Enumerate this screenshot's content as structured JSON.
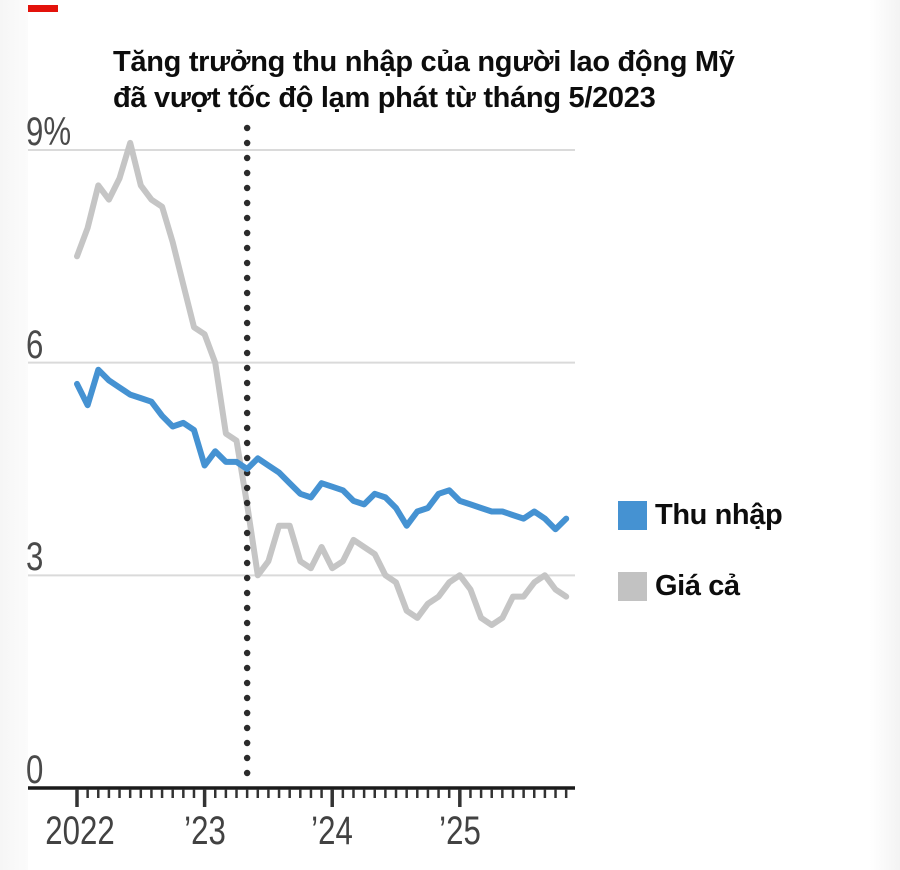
{
  "page": {
    "background": "#ffffff",
    "brand_mark_color": "#e3120b"
  },
  "title": {
    "line1": "Tăng trưởng thu nhập của người lao động Mỹ",
    "line2": "đã vượt tốc độ lạm phát từ tháng 5/2023"
  },
  "legend": [
    {
      "label": "Thu nhập",
      "color": "#4592d2"
    },
    {
      "label": "Giá cả",
      "color": "#c2c2c2"
    }
  ],
  "chart_data": {
    "type": "line",
    "title": "Tăng trưởng thu nhập của người lao động Mỹ đã vượt tốc độ lạm phát từ tháng 5/2023",
    "x_start": "Jan 2022",
    "x_step": "month",
    "x_tick_labels": [
      "2022",
      "’23",
      "’24",
      "’25"
    ],
    "y_tick_labels": [
      "9%",
      "6",
      "3",
      "0"
    ],
    "y_ticks": [
      9,
      6,
      3,
      0
    ],
    "ylim": [
      0,
      9.3
    ],
    "grid": "horizontal",
    "legend_position": "right",
    "event_line": {
      "style": "dotted",
      "month_index": 16,
      "marks": "tháng 5/2023",
      "color": "#2b2b2b"
    },
    "series": [
      {
        "name": "Thu nhập",
        "color": "#4592d2",
        "values": [
          5.7,
          5.4,
          5.9,
          5.75,
          5.65,
          5.55,
          5.5,
          5.45,
          5.25,
          5.1,
          5.15,
          5.05,
          4.55,
          4.75,
          4.6,
          4.6,
          4.5,
          4.65,
          4.55,
          4.45,
          4.3,
          4.15,
          4.1,
          4.3,
          4.25,
          4.2,
          4.05,
          4.0,
          4.15,
          4.1,
          3.95,
          3.7,
          3.9,
          3.95,
          4.15,
          4.2,
          4.05,
          4.0,
          3.95,
          3.9,
          3.9,
          3.85,
          3.8,
          3.9,
          3.8,
          3.65,
          3.8
        ]
      },
      {
        "name": "Giá cả",
        "color": "#c5c5c5",
        "values": [
          7.5,
          7.9,
          8.5,
          8.3,
          8.6,
          9.1,
          8.5,
          8.3,
          8.2,
          7.7,
          7.1,
          6.5,
          6.4,
          6.0,
          5.0,
          4.9,
          4.0,
          3.0,
          3.2,
          3.7,
          3.7,
          3.2,
          3.1,
          3.4,
          3.1,
          3.2,
          3.5,
          3.4,
          3.3,
          3.0,
          2.9,
          2.5,
          2.4,
          2.6,
          2.7,
          2.9,
          3.0,
          2.8,
          2.4,
          2.3,
          2.4,
          2.7,
          2.7,
          2.9,
          3.0,
          2.8,
          2.7
        ]
      }
    ]
  }
}
